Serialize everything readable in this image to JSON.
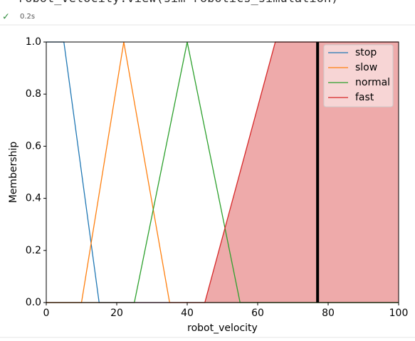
{
  "code": "robot_velocity.view(sim=robotics_simulation)",
  "status": {
    "icon": "✓",
    "time": "0.2s"
  },
  "chart_data": {
    "type": "line",
    "xlabel": "robot_velocity",
    "ylabel": "Membership",
    "xlim": [
      0,
      100
    ],
    "ylim": [
      0,
      1
    ],
    "xticks": [
      0,
      20,
      40,
      60,
      80,
      100
    ],
    "yticks": [
      {
        "value": 0,
        "label": "0.0"
      },
      0.2,
      0.4,
      0.6,
      0.8,
      {
        "value": 1,
        "label": "1.0"
      }
    ],
    "legend": "upper right",
    "series": [
      {
        "name": "stop",
        "color": "#1f77b4",
        "x": [
          0,
          5,
          15,
          100
        ],
        "values": [
          1,
          1,
          0,
          0
        ]
      },
      {
        "name": "slow",
        "color": "#ff7f0e",
        "x": [
          0,
          10,
          22,
          35,
          100
        ],
        "values": [
          0,
          0,
          1,
          0,
          0
        ]
      },
      {
        "name": "normal",
        "color": "#2ca02c",
        "x": [
          0,
          25,
          40,
          55,
          100
        ],
        "values": [
          0,
          0,
          1,
          0,
          0
        ]
      },
      {
        "name": "fast",
        "color": "#d62728",
        "x": [
          0,
          45,
          65,
          100
        ],
        "values": [
          0,
          0,
          1,
          1
        ],
        "fill": true,
        "fill_color": "#eeaaaa"
      }
    ],
    "vline": {
      "x": 77,
      "value": 1,
      "color": "#000000"
    }
  }
}
